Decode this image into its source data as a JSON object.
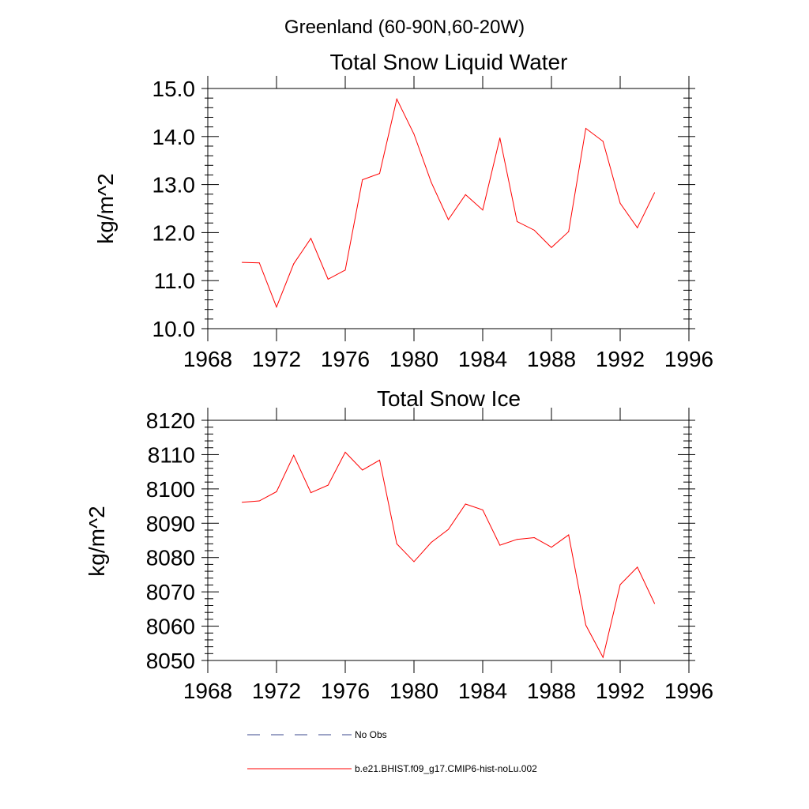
{
  "page_title": "Greenland (60-90N,60-20W)",
  "chart_data": [
    {
      "type": "line",
      "title": "Total Snow Liquid Water",
      "xlabel": "",
      "ylabel": "kg/m^2",
      "xlim": [
        1968,
        1996
      ],
      "ylim": [
        10.0,
        15.0
      ],
      "x_ticks": [
        "1968",
        "1972",
        "1976",
        "1980",
        "1984",
        "1988",
        "1992",
        "1996"
      ],
      "y_ticks": [
        "10.0",
        "11.0",
        "12.0",
        "13.0",
        "14.0",
        "15.0"
      ],
      "x": [
        1970,
        1971,
        1972,
        1973,
        1974,
        1975,
        1976,
        1977,
        1978,
        1979,
        1980,
        1981,
        1982,
        1983,
        1984,
        1985,
        1986,
        1987,
        1988,
        1989,
        1990,
        1991,
        1992,
        1993,
        1994
      ],
      "series": [
        {
          "name": "b.e21.BHIST.f09_g17.CMIP6-hist-noLu.002",
          "color": "#ff0000",
          "values": [
            11.38,
            11.37,
            10.45,
            11.35,
            11.88,
            11.03,
            11.22,
            13.1,
            13.23,
            14.78,
            14.05,
            13.05,
            12.27,
            12.79,
            12.47,
            13.97,
            12.23,
            12.05,
            11.69,
            12.02,
            14.17,
            13.9,
            12.61,
            12.1,
            12.83
          ]
        }
      ]
    },
    {
      "type": "line",
      "title": "Total Snow Ice",
      "xlabel": "",
      "ylabel": "kg/m^2",
      "xlim": [
        1968,
        1996
      ],
      "ylim": [
        8050,
        8120
      ],
      "x_ticks": [
        "1968",
        "1972",
        "1976",
        "1980",
        "1984",
        "1988",
        "1992",
        "1996"
      ],
      "y_ticks": [
        "8050",
        "8060",
        "8070",
        "8080",
        "8090",
        "8100",
        "8110",
        "8120"
      ],
      "x": [
        1970,
        1971,
        1972,
        1973,
        1974,
        1975,
        1976,
        1977,
        1978,
        1979,
        1980,
        1981,
        1982,
        1983,
        1984,
        1985,
        1986,
        1987,
        1988,
        1989,
        1990,
        1991,
        1992,
        1993,
        1994
      ],
      "series": [
        {
          "name": "b.e21.BHIST.f09_g17.CMIP6-hist-noLu.002",
          "color": "#ff0000",
          "values": [
            8096.1,
            8096.5,
            8099.2,
            8109.8,
            8098.9,
            8101.1,
            8110.7,
            8105.5,
            8108.4,
            8084.0,
            8078.8,
            8084.4,
            8088.2,
            8095.6,
            8093.9,
            8083.6,
            8085.3,
            8085.8,
            8083.0,
            8086.6,
            8060.3,
            8050.9,
            8072.1,
            8077.2,
            8066.6
          ]
        }
      ]
    }
  ],
  "legend": [
    {
      "label": "No Obs",
      "style": "dashed",
      "color": "#3b4a8c"
    },
    {
      "label": "b.e21.BHIST.f09_g17.CMIP6-hist-noLu.002",
      "style": "solid",
      "color": "#ff0000"
    }
  ]
}
